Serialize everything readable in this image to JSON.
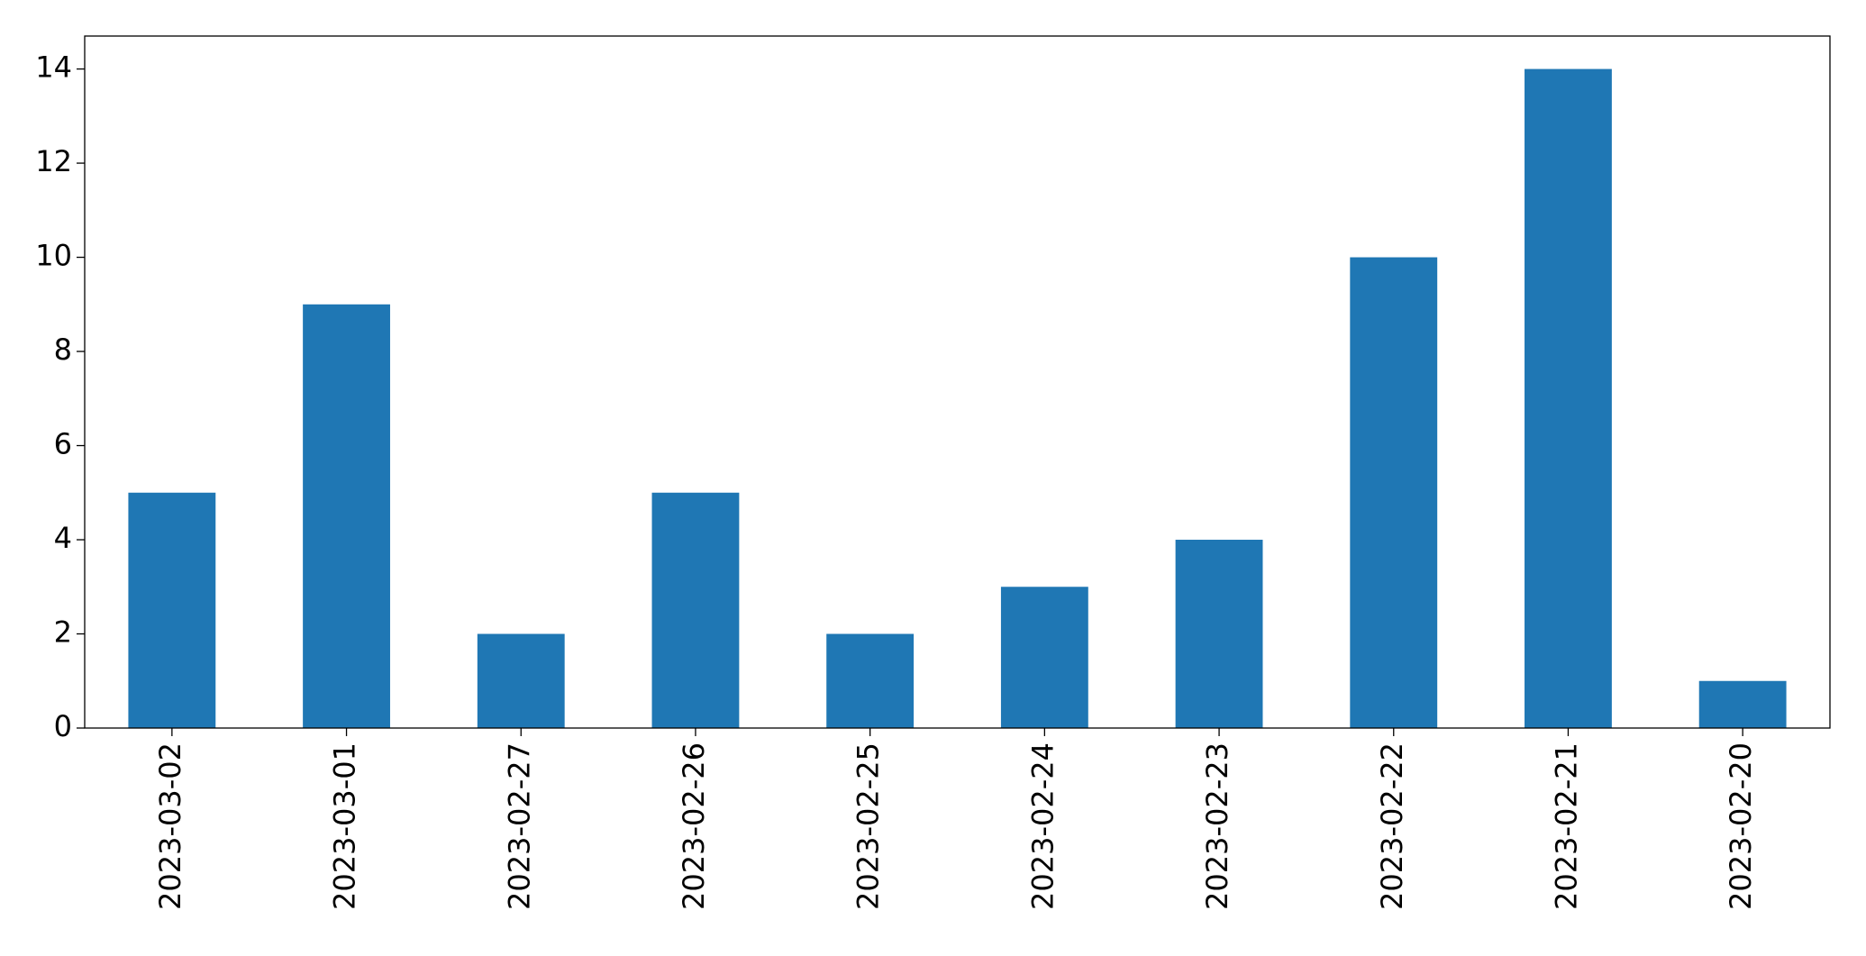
{
  "chart_data": {
    "type": "bar",
    "categories": [
      "2023-03-02",
      "2023-03-01",
      "2023-02-27",
      "2023-02-26",
      "2023-02-25",
      "2023-02-24",
      "2023-02-23",
      "2023-02-22",
      "2023-02-21",
      "2023-02-20"
    ],
    "values": [
      5,
      9,
      2,
      5,
      2,
      3,
      4,
      10,
      14,
      1
    ],
    "color": "#1f77b4",
    "ylim": [
      0,
      14.7
    ],
    "yticks": [
      0,
      2,
      4,
      6,
      8,
      10,
      12,
      14
    ],
    "grid": false
  }
}
